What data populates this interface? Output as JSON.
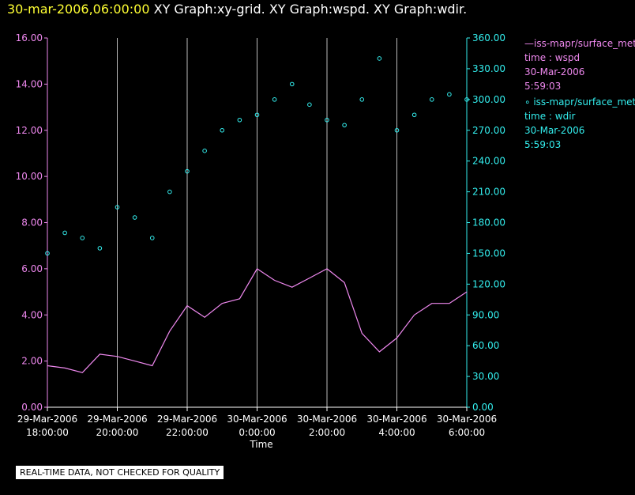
{
  "title": {
    "timestamp": "30-mar-2006,06:00:00",
    "graphs": " XY Graph:xy-grid.  XY Graph:wspd.  XY Graph:wdir."
  },
  "legend": {
    "wspd": {
      "name": "—iss-mapr/surface_met/data",
      "time": "time : wspd",
      "date": "30-Mar-2006",
      "clock": "5:59:03"
    },
    "wdir": {
      "name": "∘ iss-mapr/surface_met/data",
      "time": "time : wdir",
      "date": "30-Mar-2006",
      "clock": "5:59:03"
    }
  },
  "footer": {
    "note": "REAL-TIME DATA, NOT CHECKED FOR QUALITY"
  },
  "colors": {
    "background": "#000000",
    "wspd": "#ee88ee",
    "wdir": "#33eeee",
    "grid": "#bbbbbb",
    "title_timestamp": "#ffff33"
  },
  "chart_data": {
    "type": "line",
    "xlabel": "Time",
    "x_ticks": [
      [
        "29-Mar-2006",
        "18:00:00"
      ],
      [
        "29-Mar-2006",
        "20:00:00"
      ],
      [
        "29-Mar-2006",
        "22:00:00"
      ],
      [
        "30-Mar-2006",
        "0:00:00"
      ],
      [
        "30-Mar-2006",
        "2:00:00"
      ],
      [
        "30-Mar-2006",
        "4:00:00"
      ],
      [
        "30-Mar-2006",
        "6:00:00"
      ]
    ],
    "xlim_hours": [
      0,
      12
    ],
    "y_left": {
      "ylim": [
        0,
        16
      ],
      "ticks": [
        "0.00",
        "2.00",
        "4.00",
        "6.00",
        "8.00",
        "10.00",
        "12.00",
        "14.00",
        "16.00"
      ]
    },
    "y_right": {
      "ylim": [
        0,
        360
      ],
      "ticks": [
        "0.00",
        "30.00",
        "60.00",
        "90.00",
        "120.00",
        "150.00",
        "180.00",
        "210.00",
        "240.00",
        "270.00",
        "300.00",
        "330.00",
        "360.00"
      ]
    },
    "grid": "vertical",
    "series": [
      {
        "name": "iss-mapr/surface_met/data time : wspd",
        "axis": "left",
        "style": "line",
        "x": [
          0,
          0.5,
          1,
          1.5,
          2,
          2.5,
          3,
          3.5,
          4,
          4.5,
          5,
          5.5,
          6,
          6.5,
          7,
          7.5,
          8,
          8.5,
          9,
          9.5,
          10,
          10.5,
          11,
          11.5,
          12
        ],
        "values": [
          1.8,
          1.7,
          1.5,
          2.3,
          2.2,
          2.0,
          1.8,
          3.3,
          4.4,
          3.9,
          4.5,
          4.7,
          6.0,
          5.5,
          5.2,
          5.6,
          6.0,
          5.4,
          3.2,
          2.4,
          3.0,
          4.0,
          4.5,
          4.5,
          5.0
        ]
      },
      {
        "name": "iss-mapr/surface_met/data time : wdir",
        "axis": "right",
        "style": "scatter",
        "x": [
          0,
          0.5,
          1,
          1.5,
          2,
          2.5,
          3,
          3.5,
          4,
          4.5,
          5,
          5.5,
          6,
          6.5,
          7,
          7.5,
          8,
          8.5,
          9,
          9.5,
          10,
          10.5,
          11,
          11.5,
          12
        ],
        "values": [
          150,
          170,
          165,
          155,
          195,
          185,
          165,
          210,
          230,
          250,
          270,
          280,
          285,
          300,
          315,
          295,
          280,
          275,
          300,
          340,
          270,
          285,
          300,
          305,
          300
        ]
      }
    ]
  }
}
